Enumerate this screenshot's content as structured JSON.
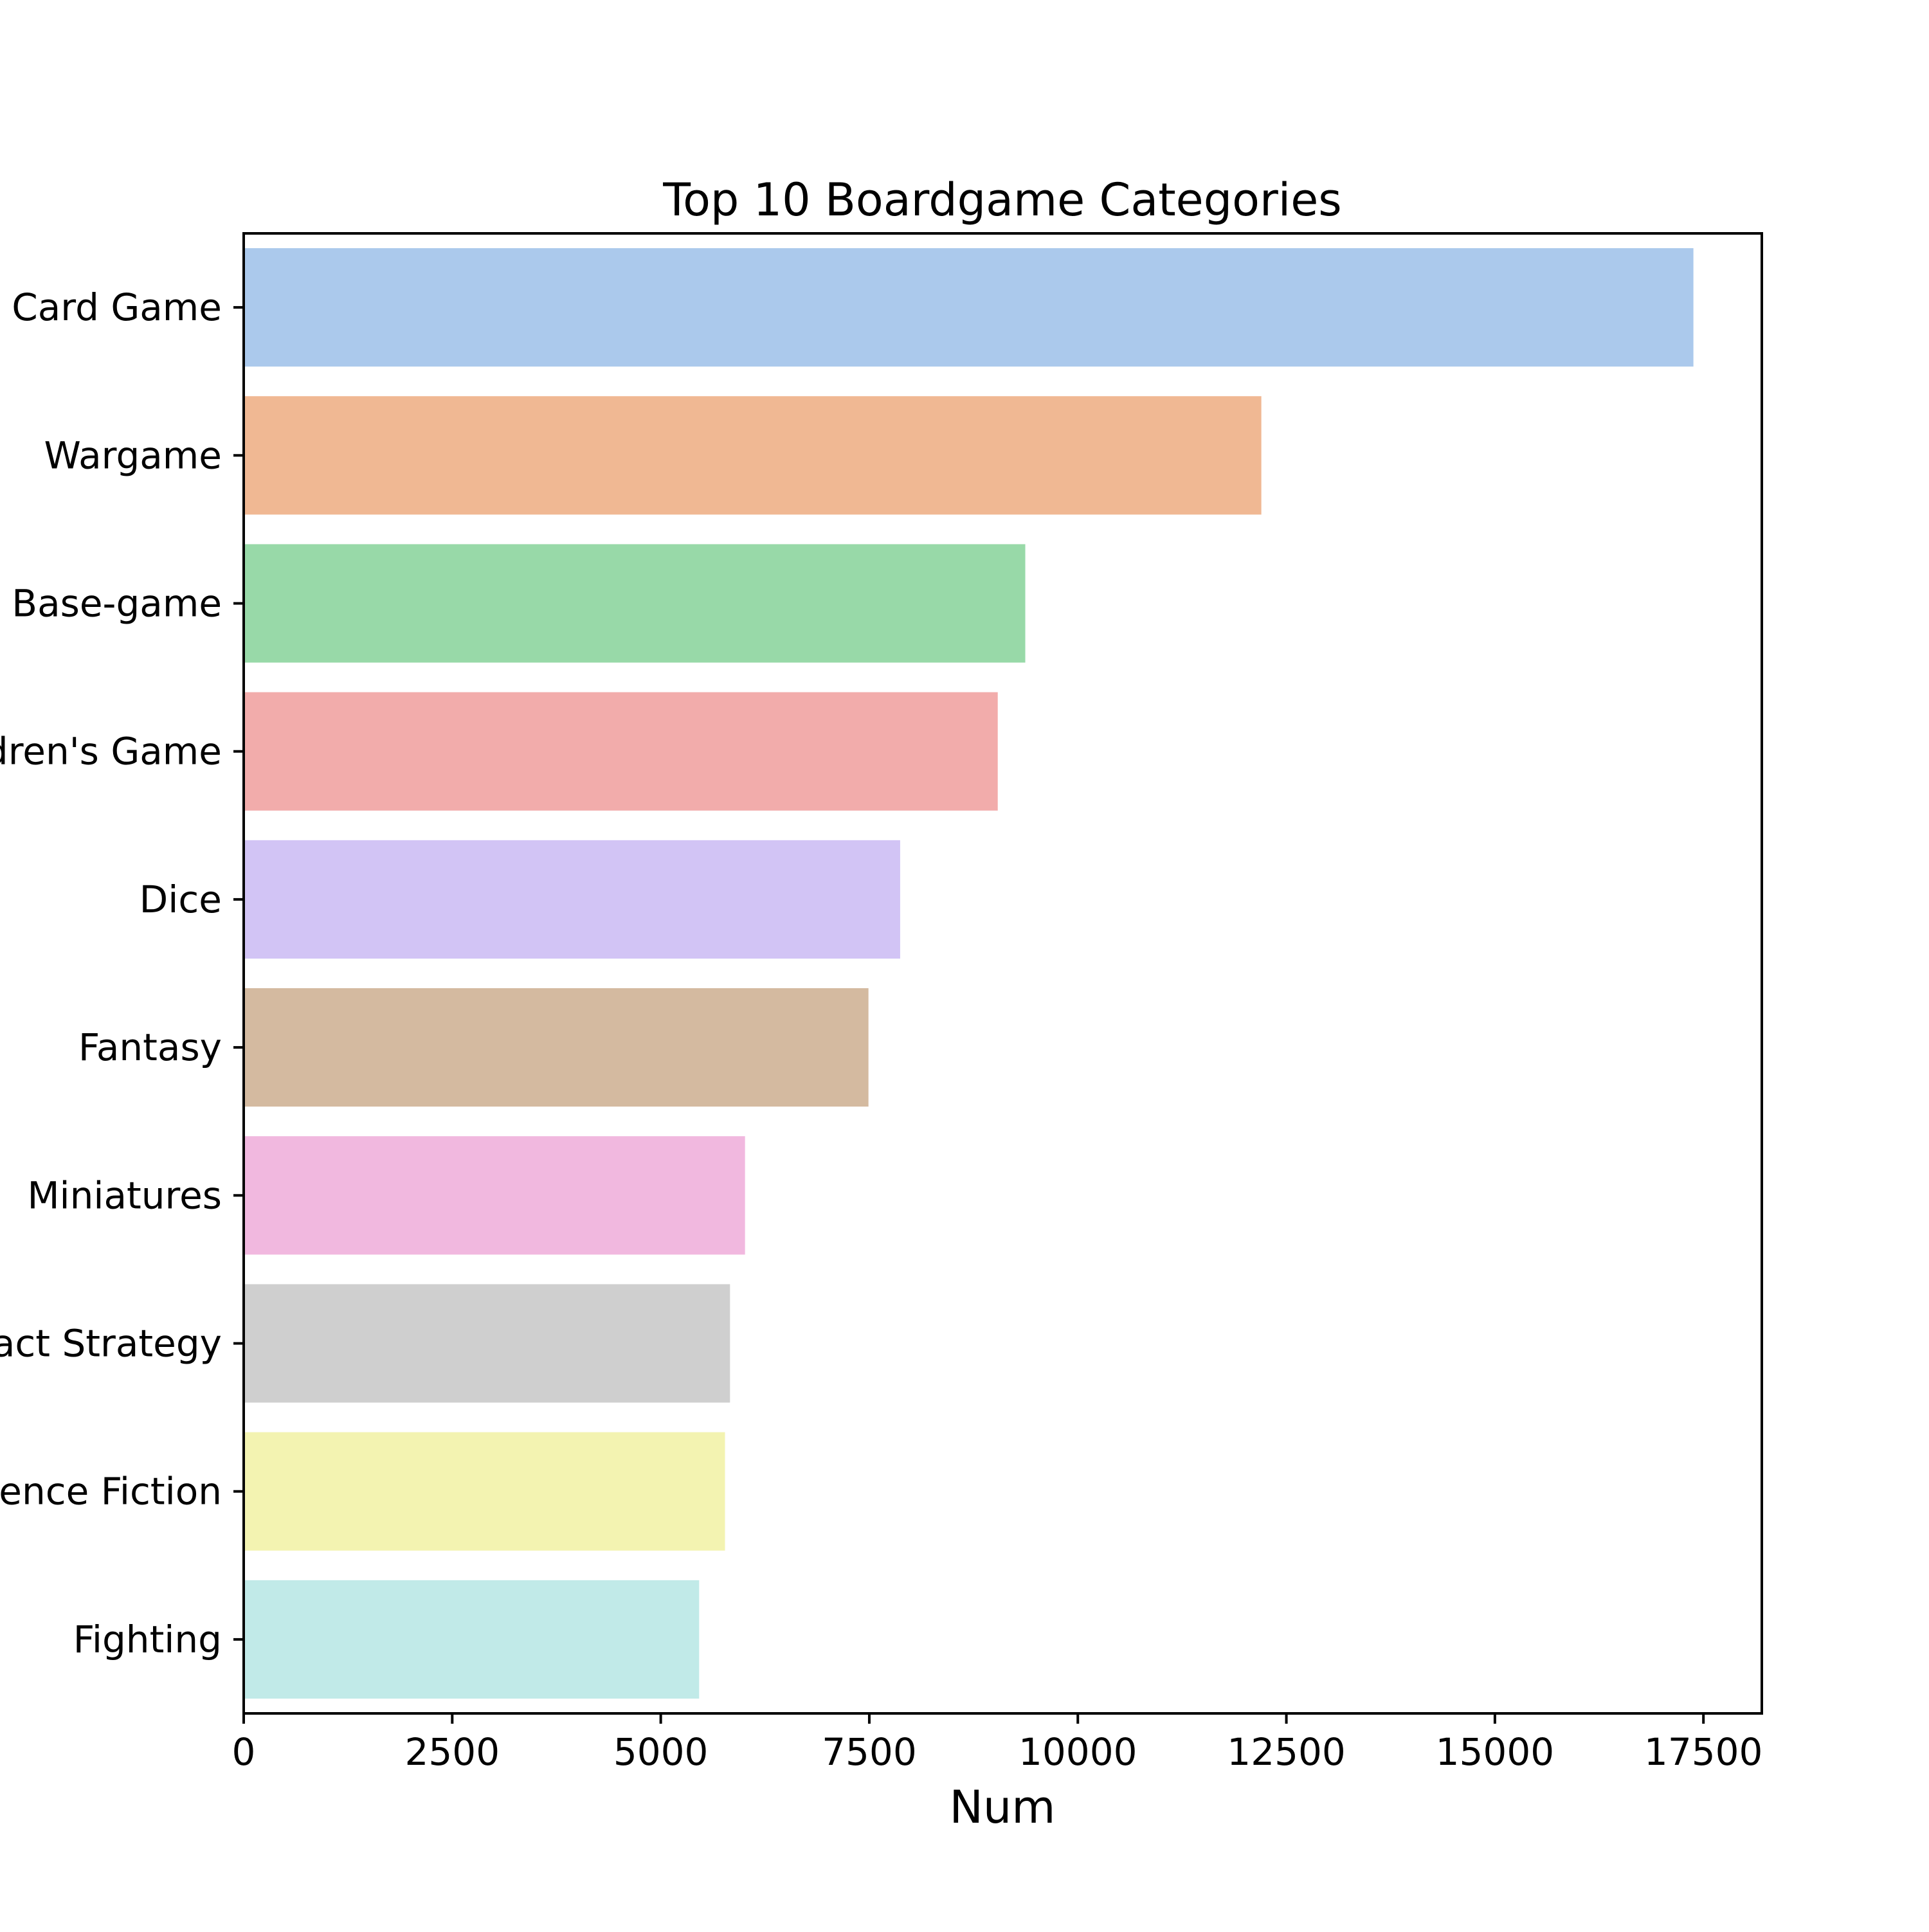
{
  "chart_data": {
    "type": "bar",
    "orientation": "horizontal",
    "title": "Top 10 Boardgame Categories",
    "xlabel": "Num",
    "ylabel": "",
    "xlim": [
      0,
      18200
    ],
    "xticks": [
      0,
      2500,
      5000,
      7500,
      10000,
      12500,
      15000,
      17500
    ],
    "grid": false,
    "categories": [
      "Card Game",
      "Wargame",
      "Base-game",
      "Children's Game",
      "Dice",
      "Fantasy",
      "Miniatures",
      "Abstract Strategy",
      "Science Fiction",
      "Fighting"
    ],
    "values": [
      17380,
      12200,
      9370,
      9040,
      7870,
      7490,
      6010,
      5830,
      5770,
      5460
    ],
    "colors": [
      "#abc9ec",
      "#f0b893",
      "#98d9a8",
      "#f2acab",
      "#d2c4f5",
      "#d4baa0",
      "#f1b8df",
      "#cfcfcf",
      "#f3f3b1",
      "#c1eae8"
    ]
  }
}
